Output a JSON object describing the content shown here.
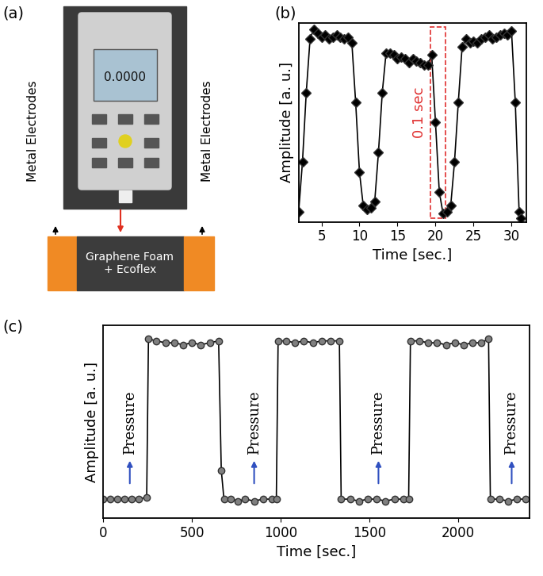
{
  "panel_labels": [
    "(a)",
    "(b)",
    "(c)"
  ],
  "diagram": {
    "gauge_display": "0.0000",
    "electrode_labels": [
      "Metal Electrodes",
      "Metal Electrodes"
    ],
    "sample_label": "Graphene Foam\n+ Ecoflex"
  },
  "chart_data": [
    {
      "type": "line",
      "xlabel": "Time [sec.]",
      "ylabel": "Amplitude [a. u.]",
      "xlim": [
        2,
        32
      ],
      "xticks": [
        5,
        10,
        15,
        20,
        25,
        30
      ],
      "ylim": [
        0,
        1
      ],
      "tick_labels": "x",
      "annotations": [
        {
          "text": "0.1 sec",
          "x_range": [
            19.3,
            21.3
          ]
        }
      ],
      "series": [
        {
          "color": "#000000",
          "marker": "diamond",
          "line_style": "solid",
          "x": [
            2,
            2.5,
            3,
            3.5,
            4,
            4.5,
            5,
            5.5,
            6,
            6.5,
            7,
            7.5,
            8,
            8.5,
            9,
            9.5,
            10,
            10.5,
            11,
            11.5,
            12,
            12.5,
            13,
            13.5,
            14,
            14.5,
            15,
            15.5,
            16,
            16.5,
            17,
            17.5,
            18,
            18.5,
            19,
            19.5,
            20,
            20.5,
            21,
            21.5,
            22,
            22.5,
            23,
            23.5,
            24,
            24.5,
            25,
            25.5,
            26,
            26.5,
            27,
            27.5,
            28,
            28.5,
            29,
            29.5,
            30,
            30.5,
            31,
            31.2
          ],
          "values": [
            0.05,
            0.3,
            0.65,
            0.92,
            0.97,
            0.95,
            0.93,
            0.94,
            0.92,
            0.93,
            0.94,
            0.93,
            0.92,
            0.93,
            0.9,
            0.6,
            0.25,
            0.08,
            0.06,
            0.07,
            0.1,
            0.35,
            0.65,
            0.85,
            0.85,
            0.84,
            0.82,
            0.83,
            0.82,
            0.8,
            0.82,
            0.81,
            0.8,
            0.79,
            0.79,
            0.84,
            0.5,
            0.15,
            0.04,
            0.05,
            0.08,
            0.3,
            0.6,
            0.88,
            0.92,
            0.9,
            0.91,
            0.9,
            0.92,
            0.93,
            0.94,
            0.92,
            0.93,
            0.94,
            0.95,
            0.94,
            0.96,
            0.6,
            0.05,
            0.02
          ]
        }
      ]
    },
    {
      "type": "line",
      "xlabel": "Time [sec.]",
      "ylabel": "Amplitude [a. u.]",
      "xlim": [
        0,
        2400
      ],
      "xticks": [
        0,
        500,
        1000,
        1500,
        2000
      ],
      "ylim": [
        0,
        1
      ],
      "tick_labels": "x",
      "annotations": [
        {
          "text": "Pressure",
          "x": 150
        },
        {
          "text": "Pressure",
          "x": 850
        },
        {
          "text": "Pressure",
          "x": 1550
        },
        {
          "text": "Pressure",
          "x": 2300
        }
      ],
      "series": [
        {
          "color": "#808080",
          "marker": "circle",
          "line_style": "solid",
          "x": [
            0,
            40,
            80,
            120,
            160,
            200,
            245,
            255,
            300,
            350,
            400,
            450,
            500,
            550,
            600,
            650,
            665,
            680,
            720,
            760,
            800,
            850,
            900,
            950,
            975,
            985,
            1030,
            1080,
            1130,
            1180,
            1230,
            1280,
            1330,
            1340,
            1390,
            1440,
            1490,
            1540,
            1590,
            1640,
            1690,
            1720,
            1730,
            1780,
            1830,
            1880,
            1930,
            1980,
            2030,
            2080,
            2130,
            2170,
            2180,
            2230,
            2280,
            2330,
            2380
          ],
          "values": [
            0.1,
            0.1,
            0.1,
            0.1,
            0.1,
            0.1,
            0.11,
            0.93,
            0.92,
            0.91,
            0.91,
            0.9,
            0.91,
            0.9,
            0.91,
            0.92,
            0.25,
            0.1,
            0.1,
            0.09,
            0.1,
            0.09,
            0.1,
            0.1,
            0.1,
            0.92,
            0.92,
            0.91,
            0.92,
            0.91,
            0.92,
            0.92,
            0.92,
            0.1,
            0.1,
            0.09,
            0.1,
            0.1,
            0.09,
            0.1,
            0.1,
            0.1,
            0.92,
            0.92,
            0.91,
            0.91,
            0.9,
            0.91,
            0.9,
            0.91,
            0.91,
            0.93,
            0.1,
            0.1,
            0.09,
            0.1,
            0.1
          ]
        }
      ]
    }
  ]
}
